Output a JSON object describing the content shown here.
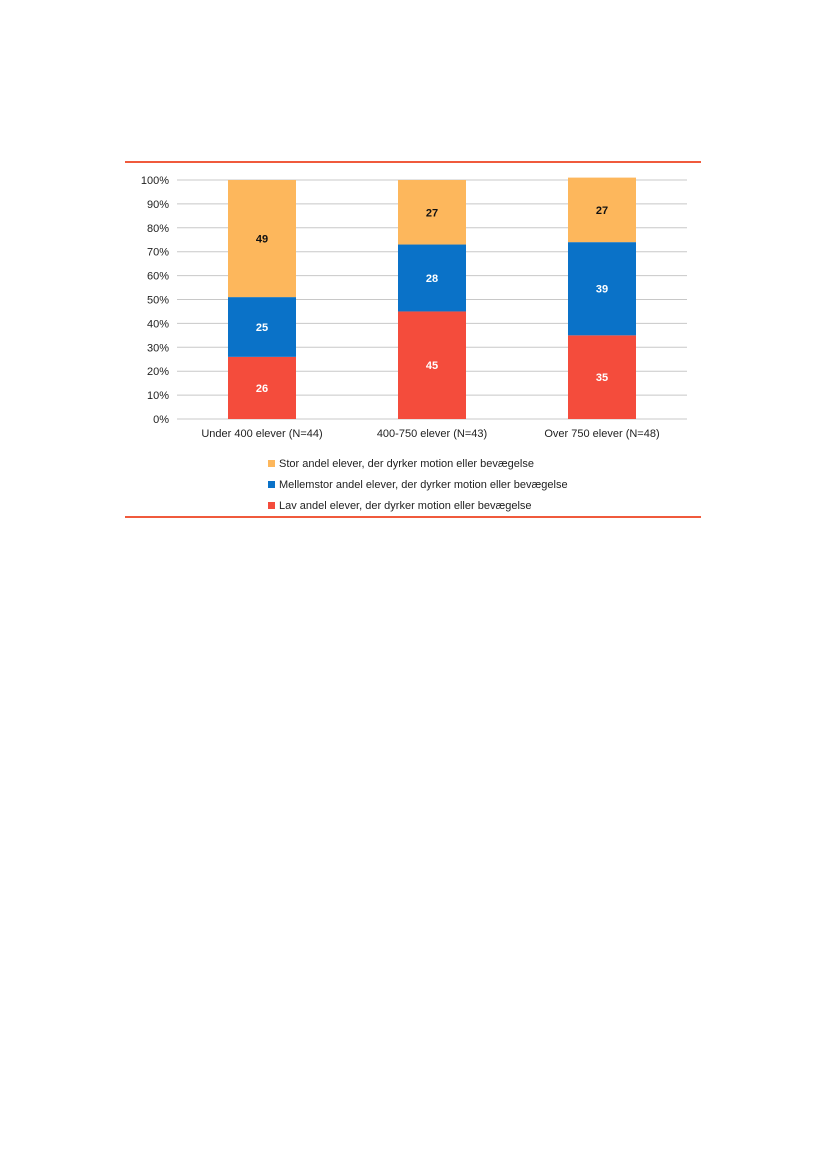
{
  "chart_data": {
    "type": "bar",
    "stacked": true,
    "categories": [
      "Under 400 elever (N=44)",
      "400-750 elever (N=43)",
      "Over 750 elever (N=48)"
    ],
    "series": [
      {
        "name": "Lav andel elever, der dyrker motion eller bevægelse",
        "values": [
          26,
          45,
          35
        ],
        "color": "#f44c3c",
        "label_color": "#ffffff"
      },
      {
        "name": "Mellemstor andel elever, der dyrker motion eller bevægelse",
        "values": [
          25,
          28,
          39
        ],
        "color": "#0a72c8",
        "label_color": "#ffffff"
      },
      {
        "name": "Stor andel elever, der dyrker motion eller bevægelse",
        "values": [
          49,
          27,
          27
        ],
        "color": "#fdb75c",
        "label_color": "#111111"
      }
    ],
    "yticks": [
      "0%",
      "10%",
      "20%",
      "30%",
      "40%",
      "50%",
      "60%",
      "70%",
      "80%",
      "90%",
      "100%"
    ],
    "ylim": [
      0,
      100
    ],
    "grid": true,
    "legend_position": "bottom",
    "legend_order": [
      2,
      1,
      0
    ]
  },
  "colors": {
    "rule": "#f05a3c",
    "grid": "#c8c8c8"
  }
}
